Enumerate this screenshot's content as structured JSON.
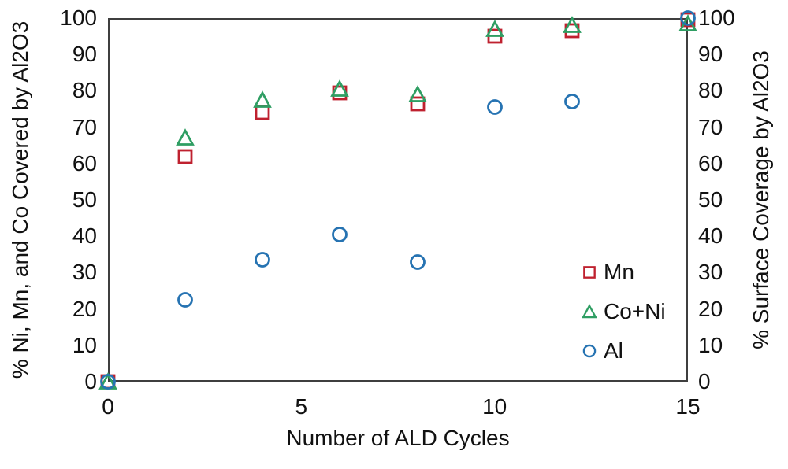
{
  "chart_data": {
    "type": "scatter",
    "title": "",
    "xlabel": "Number of ALD Cycles",
    "ylabel_left": "% Ni, Mn, and Co Covered by Al2O3",
    "ylabel_right": "% Surface Coverage by Al2O3",
    "xlim": [
      0,
      15
    ],
    "ylim": [
      0,
      100
    ],
    "x_ticks": [
      0,
      5,
      10,
      15
    ],
    "y_ticks": [
      0,
      10,
      20,
      30,
      40,
      50,
      60,
      70,
      80,
      90,
      100
    ],
    "grid": false,
    "legend_position": "inside-right",
    "axis_color": "#3f3f3f",
    "series": [
      {
        "name": "Mn",
        "marker": "square",
        "color": "#bf212f",
        "points": [
          [
            0,
            0
          ],
          [
            2,
            62
          ],
          [
            4,
            74
          ],
          [
            6,
            79.5
          ],
          [
            8,
            76.5
          ],
          [
            10,
            95
          ],
          [
            12,
            96.5
          ],
          [
            15,
            99.5
          ]
        ]
      },
      {
        "name": "Co+Ni",
        "marker": "triangle",
        "color": "#2f9e63",
        "points": [
          [
            0,
            0
          ],
          [
            2,
            67
          ],
          [
            4,
            77.5
          ],
          [
            6,
            80.5
          ],
          [
            8,
            79
          ],
          [
            10,
            97
          ],
          [
            12,
            98
          ],
          [
            15,
            98.5
          ]
        ]
      },
      {
        "name": "Al",
        "marker": "circle",
        "color": "#2673b2",
        "points": [
          [
            0,
            0
          ],
          [
            2,
            22.5
          ],
          [
            4,
            33.5
          ],
          [
            6,
            40.5
          ],
          [
            8,
            33
          ],
          [
            10,
            75.5
          ],
          [
            12,
            77
          ],
          [
            15,
            100
          ]
        ]
      }
    ]
  }
}
